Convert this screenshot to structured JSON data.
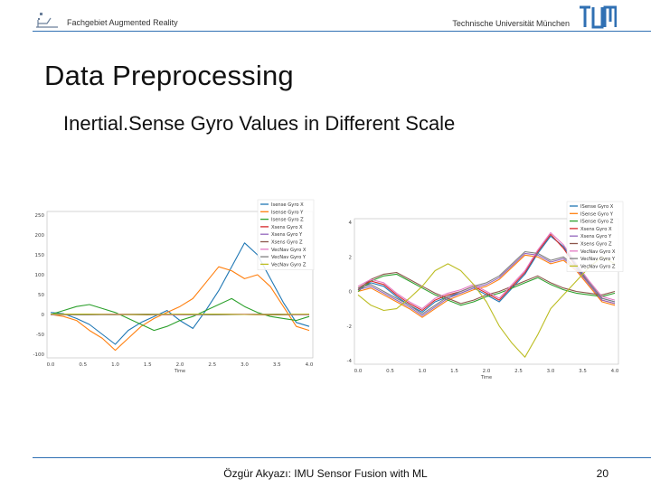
{
  "header": {
    "left_text": "Fachgebiet Augmented Reality",
    "right_text": "Technische Universität München"
  },
  "slide": {
    "title": "Data Preprocessing",
    "subtitle": "Inertial.Sense Gyro Values in Different Scale"
  },
  "footer": {
    "center_text": "Özgür Akyazı: IMU Sensor Fusion with ML",
    "page_number": "20"
  },
  "chart_data": [
    {
      "type": "line",
      "title": "",
      "xlabel": "Time",
      "ylabel": "",
      "xlim": [
        0,
        4.0
      ],
      "ylim": [
        -100,
        250
      ],
      "xticks": [
        "0.0",
        "0.5",
        "1.0",
        "1.5",
        "2.0",
        "2.5",
        "3.0",
        "3.5",
        "4.0"
      ],
      "yticks": [
        "250",
        "200",
        "150",
        "100",
        "50",
        "0",
        "-50",
        "-100"
      ],
      "legend_position": "top-right",
      "series": [
        {
          "name": "Isense Gyro X",
          "color": "#1f77b4",
          "x": [
            0,
            0.2,
            0.4,
            0.6,
            0.8,
            1.0,
            1.2,
            1.4,
            1.6,
            1.8,
            2.0,
            2.2,
            2.4,
            2.6,
            2.8,
            3.0,
            3.2,
            3.4,
            3.6,
            3.8,
            4.0
          ],
          "values": [
            5,
            2,
            -10,
            -25,
            -50,
            -75,
            -40,
            -20,
            -5,
            10,
            -15,
            -35,
            10,
            60,
            120,
            180,
            150,
            90,
            30,
            -20,
            -30
          ]
        },
        {
          "name": "Isense Gyro Y",
          "color": "#ff7f0e",
          "x": [
            0,
            0.2,
            0.4,
            0.6,
            0.8,
            1.0,
            1.2,
            1.4,
            1.6,
            1.8,
            2.0,
            2.2,
            2.4,
            2.6,
            2.8,
            3.0,
            3.2,
            3.4,
            3.6,
            3.8,
            4.0
          ],
          "values": [
            0,
            -5,
            -15,
            -40,
            -60,
            -90,
            -60,
            -30,
            -10,
            5,
            20,
            40,
            80,
            120,
            110,
            90,
            100,
            70,
            20,
            -30,
            -40
          ]
        },
        {
          "name": "Isense Gyro Z",
          "color": "#2ca02c",
          "x": [
            0,
            0.2,
            0.4,
            0.6,
            0.8,
            1.0,
            1.2,
            1.4,
            1.6,
            1.8,
            2.0,
            2.2,
            2.4,
            2.6,
            2.8,
            3.0,
            3.2,
            3.4,
            3.6,
            3.8,
            4.0
          ],
          "values": [
            0,
            10,
            20,
            25,
            15,
            5,
            -10,
            -25,
            -40,
            -30,
            -15,
            -5,
            10,
            25,
            40,
            20,
            5,
            -5,
            -10,
            -15,
            -5
          ]
        },
        {
          "name": "Xsens Gyro X",
          "color": "#d62728",
          "x": [
            0,
            0.5,
            1.0,
            1.5,
            2.0,
            2.5,
            3.0,
            3.5,
            4.0
          ],
          "values": [
            0,
            -1,
            1,
            0,
            -1,
            1,
            0,
            -1,
            0
          ]
        },
        {
          "name": "Xsens Gyro Y",
          "color": "#9467bd",
          "x": [
            0,
            0.5,
            1.0,
            1.5,
            2.0,
            2.5,
            3.0,
            3.5,
            4.0
          ],
          "values": [
            1,
            0,
            -1,
            1,
            0,
            -1,
            1,
            0,
            -1
          ]
        },
        {
          "name": "Xsens Gyro Z",
          "color": "#8c564b",
          "x": [
            0,
            0.5,
            1.0,
            1.5,
            2.0,
            2.5,
            3.0,
            3.5,
            4.0
          ],
          "values": [
            0,
            1,
            0,
            -1,
            0,
            1,
            0,
            -1,
            0
          ]
        },
        {
          "name": "VecNav Gyro X",
          "color": "#e377c2",
          "x": [
            0,
            0.5,
            1.0,
            1.5,
            2.0,
            2.5,
            3.0,
            3.5,
            4.0
          ],
          "values": [
            -1,
            0,
            1,
            0,
            -1,
            0,
            1,
            0,
            -1
          ]
        },
        {
          "name": "VecNav Gyro Y",
          "color": "#7f7f7f",
          "x": [
            0,
            0.5,
            1.0,
            1.5,
            2.0,
            2.5,
            3.0,
            3.5,
            4.0
          ],
          "values": [
            0,
            -1,
            0,
            1,
            0,
            -1,
            0,
            1,
            0
          ]
        },
        {
          "name": "VecNav Gyro Z",
          "color": "#bcbd22",
          "x": [
            0,
            0.5,
            1.0,
            1.5,
            2.0,
            2.5,
            3.0,
            3.5,
            4.0
          ],
          "values": [
            1,
            1,
            0,
            0,
            1,
            1,
            0,
            0,
            1
          ]
        }
      ]
    },
    {
      "type": "line",
      "title": "",
      "xlabel": "Time",
      "ylabel": "",
      "xlim": [
        0,
        4.0
      ],
      "ylim": [
        -4,
        4
      ],
      "xticks": [
        "0.0",
        "0.5",
        "1.0",
        "1.5",
        "2.0",
        "2.5",
        "3.0",
        "3.5",
        "4.0"
      ],
      "yticks": [
        "4",
        "2",
        "0",
        "-2",
        "-4"
      ],
      "legend_position": "top-right",
      "series": [
        {
          "name": "ISense Gyro X",
          "color": "#1f77b4",
          "x": [
            0,
            0.2,
            0.4,
            0.6,
            0.8,
            1.0,
            1.2,
            1.4,
            1.6,
            1.8,
            2.0,
            2.2,
            2.4,
            2.6,
            2.8,
            3.0,
            3.2,
            3.4,
            3.6,
            3.8,
            4.0
          ],
          "values": [
            0.1,
            0.5,
            0.3,
            -0.3,
            -0.8,
            -1.2,
            -0.6,
            -0.3,
            -0.1,
            0.2,
            -0.2,
            -0.6,
            0.2,
            1.0,
            2.2,
            3.2,
            2.6,
            1.5,
            0.5,
            -0.4,
            -0.6
          ]
        },
        {
          "name": "ISense Gyro Y",
          "color": "#ff7f0e",
          "x": [
            0,
            0.2,
            0.4,
            0.6,
            0.8,
            1.0,
            1.2,
            1.4,
            1.6,
            1.8,
            2.0,
            2.2,
            2.4,
            2.6,
            2.8,
            3.0,
            3.2,
            3.4,
            3.6,
            3.8,
            4.0
          ],
          "values": [
            0,
            0.2,
            -0.2,
            -0.6,
            -1.0,
            -1.5,
            -1.0,
            -0.5,
            -0.2,
            0.1,
            0.3,
            0.7,
            1.4,
            2.1,
            2.0,
            1.6,
            1.8,
            1.2,
            0.3,
            -0.6,
            -0.8
          ]
        },
        {
          "name": "ISense Gyro Z",
          "color": "#2ca02c",
          "x": [
            0,
            0.2,
            0.4,
            0.6,
            0.8,
            1.0,
            1.2,
            1.4,
            1.6,
            1.8,
            2.0,
            2.2,
            2.4,
            2.6,
            2.8,
            3.0,
            3.2,
            3.4,
            3.6,
            3.8,
            4.0
          ],
          "values": [
            0,
            0.6,
            0.9,
            1.0,
            0.6,
            0.2,
            -0.2,
            -0.5,
            -0.8,
            -0.6,
            -0.3,
            -0.1,
            0.2,
            0.5,
            0.8,
            0.4,
            0.1,
            -0.1,
            -0.2,
            -0.3,
            -0.1
          ]
        },
        {
          "name": "Xsens Gyro X",
          "color": "#d62728",
          "x": [
            0,
            0.2,
            0.4,
            0.6,
            0.8,
            1.0,
            1.2,
            1.4,
            1.6,
            1.8,
            2.0,
            2.2,
            2.4,
            2.6,
            2.8,
            3.0,
            3.2,
            3.4,
            3.6,
            3.8,
            4.0
          ],
          "values": [
            0.2,
            0.6,
            0.4,
            -0.2,
            -0.7,
            -1.1,
            -0.5,
            -0.2,
            0,
            0.3,
            -0.1,
            -0.5,
            0.3,
            1.1,
            2.3,
            3.3,
            2.5,
            1.4,
            0.4,
            -0.5,
            -0.7
          ]
        },
        {
          "name": "Xsens Gyro Y",
          "color": "#9467bd",
          "x": [
            0,
            0.2,
            0.4,
            0.6,
            0.8,
            1.0,
            1.2,
            1.4,
            1.6,
            1.8,
            2.0,
            2.2,
            2.4,
            2.6,
            2.8,
            3.0,
            3.2,
            3.4,
            3.6,
            3.8,
            4.0
          ],
          "values": [
            0.1,
            0.3,
            -0.1,
            -0.5,
            -0.9,
            -1.4,
            -0.9,
            -0.4,
            -0.1,
            0.2,
            0.4,
            0.8,
            1.5,
            2.2,
            2.1,
            1.7,
            1.9,
            1.3,
            0.4,
            -0.5,
            -0.7
          ]
        },
        {
          "name": "Xsens Gyro Z",
          "color": "#8c564b",
          "x": [
            0,
            0.2,
            0.4,
            0.6,
            0.8,
            1.0,
            1.2,
            1.4,
            1.6,
            1.8,
            2.0,
            2.2,
            2.4,
            2.6,
            2.8,
            3.0,
            3.2,
            3.4,
            3.6,
            3.8,
            4.0
          ],
          "values": [
            0.1,
            0.7,
            1.0,
            1.1,
            0.7,
            0.3,
            -0.1,
            -0.4,
            -0.7,
            -0.5,
            -0.2,
            0,
            0.3,
            0.6,
            0.9,
            0.5,
            0.2,
            0,
            -0.1,
            -0.2,
            0
          ]
        },
        {
          "name": "VecNav Gyro X",
          "color": "#e377c2",
          "x": [
            0,
            0.2,
            0.4,
            0.6,
            0.8,
            1.0,
            1.2,
            1.4,
            1.6,
            1.8,
            2.0,
            2.2,
            2.4,
            2.6,
            2.8,
            3.0,
            3.2,
            3.4,
            3.6,
            3.8,
            4.0
          ],
          "values": [
            0.3,
            0.7,
            0.5,
            -0.1,
            -0.6,
            -1.0,
            -0.4,
            -0.1,
            0.1,
            0.4,
            0,
            -0.4,
            0.4,
            1.2,
            2.4,
            3.4,
            2.7,
            1.6,
            0.6,
            -0.3,
            -0.5
          ]
        },
        {
          "name": "VecNav Gyro Y",
          "color": "#7f7f7f",
          "x": [
            0,
            0.2,
            0.4,
            0.6,
            0.8,
            1.0,
            1.2,
            1.4,
            1.6,
            1.8,
            2.0,
            2.2,
            2.4,
            2.6,
            2.8,
            3.0,
            3.2,
            3.4,
            3.6,
            3.8,
            4.0
          ],
          "values": [
            0.2,
            0.4,
            0,
            -0.4,
            -0.8,
            -1.3,
            -0.8,
            -0.3,
            0,
            0.3,
            0.5,
            0.9,
            1.6,
            2.3,
            2.2,
            1.8,
            2.0,
            1.4,
            0.5,
            -0.4,
            -0.6
          ]
        },
        {
          "name": "VecNav Gyro Z",
          "color": "#bcbd22",
          "x": [
            0,
            0.2,
            0.4,
            0.6,
            0.8,
            1.0,
            1.2,
            1.4,
            1.6,
            1.8,
            2.0,
            2.2,
            2.4,
            2.6,
            2.8,
            3.0,
            3.2,
            3.4,
            3.6,
            3.8,
            4.0
          ],
          "values": [
            -0.2,
            -0.8,
            -1.1,
            -1.0,
            -0.4,
            0.3,
            1.2,
            1.6,
            1.2,
            0.4,
            -0.6,
            -2.0,
            -3.0,
            -3.8,
            -2.5,
            -1.0,
            -0.2,
            0.6,
            1.4,
            2.0,
            1.6
          ]
        }
      ]
    }
  ]
}
